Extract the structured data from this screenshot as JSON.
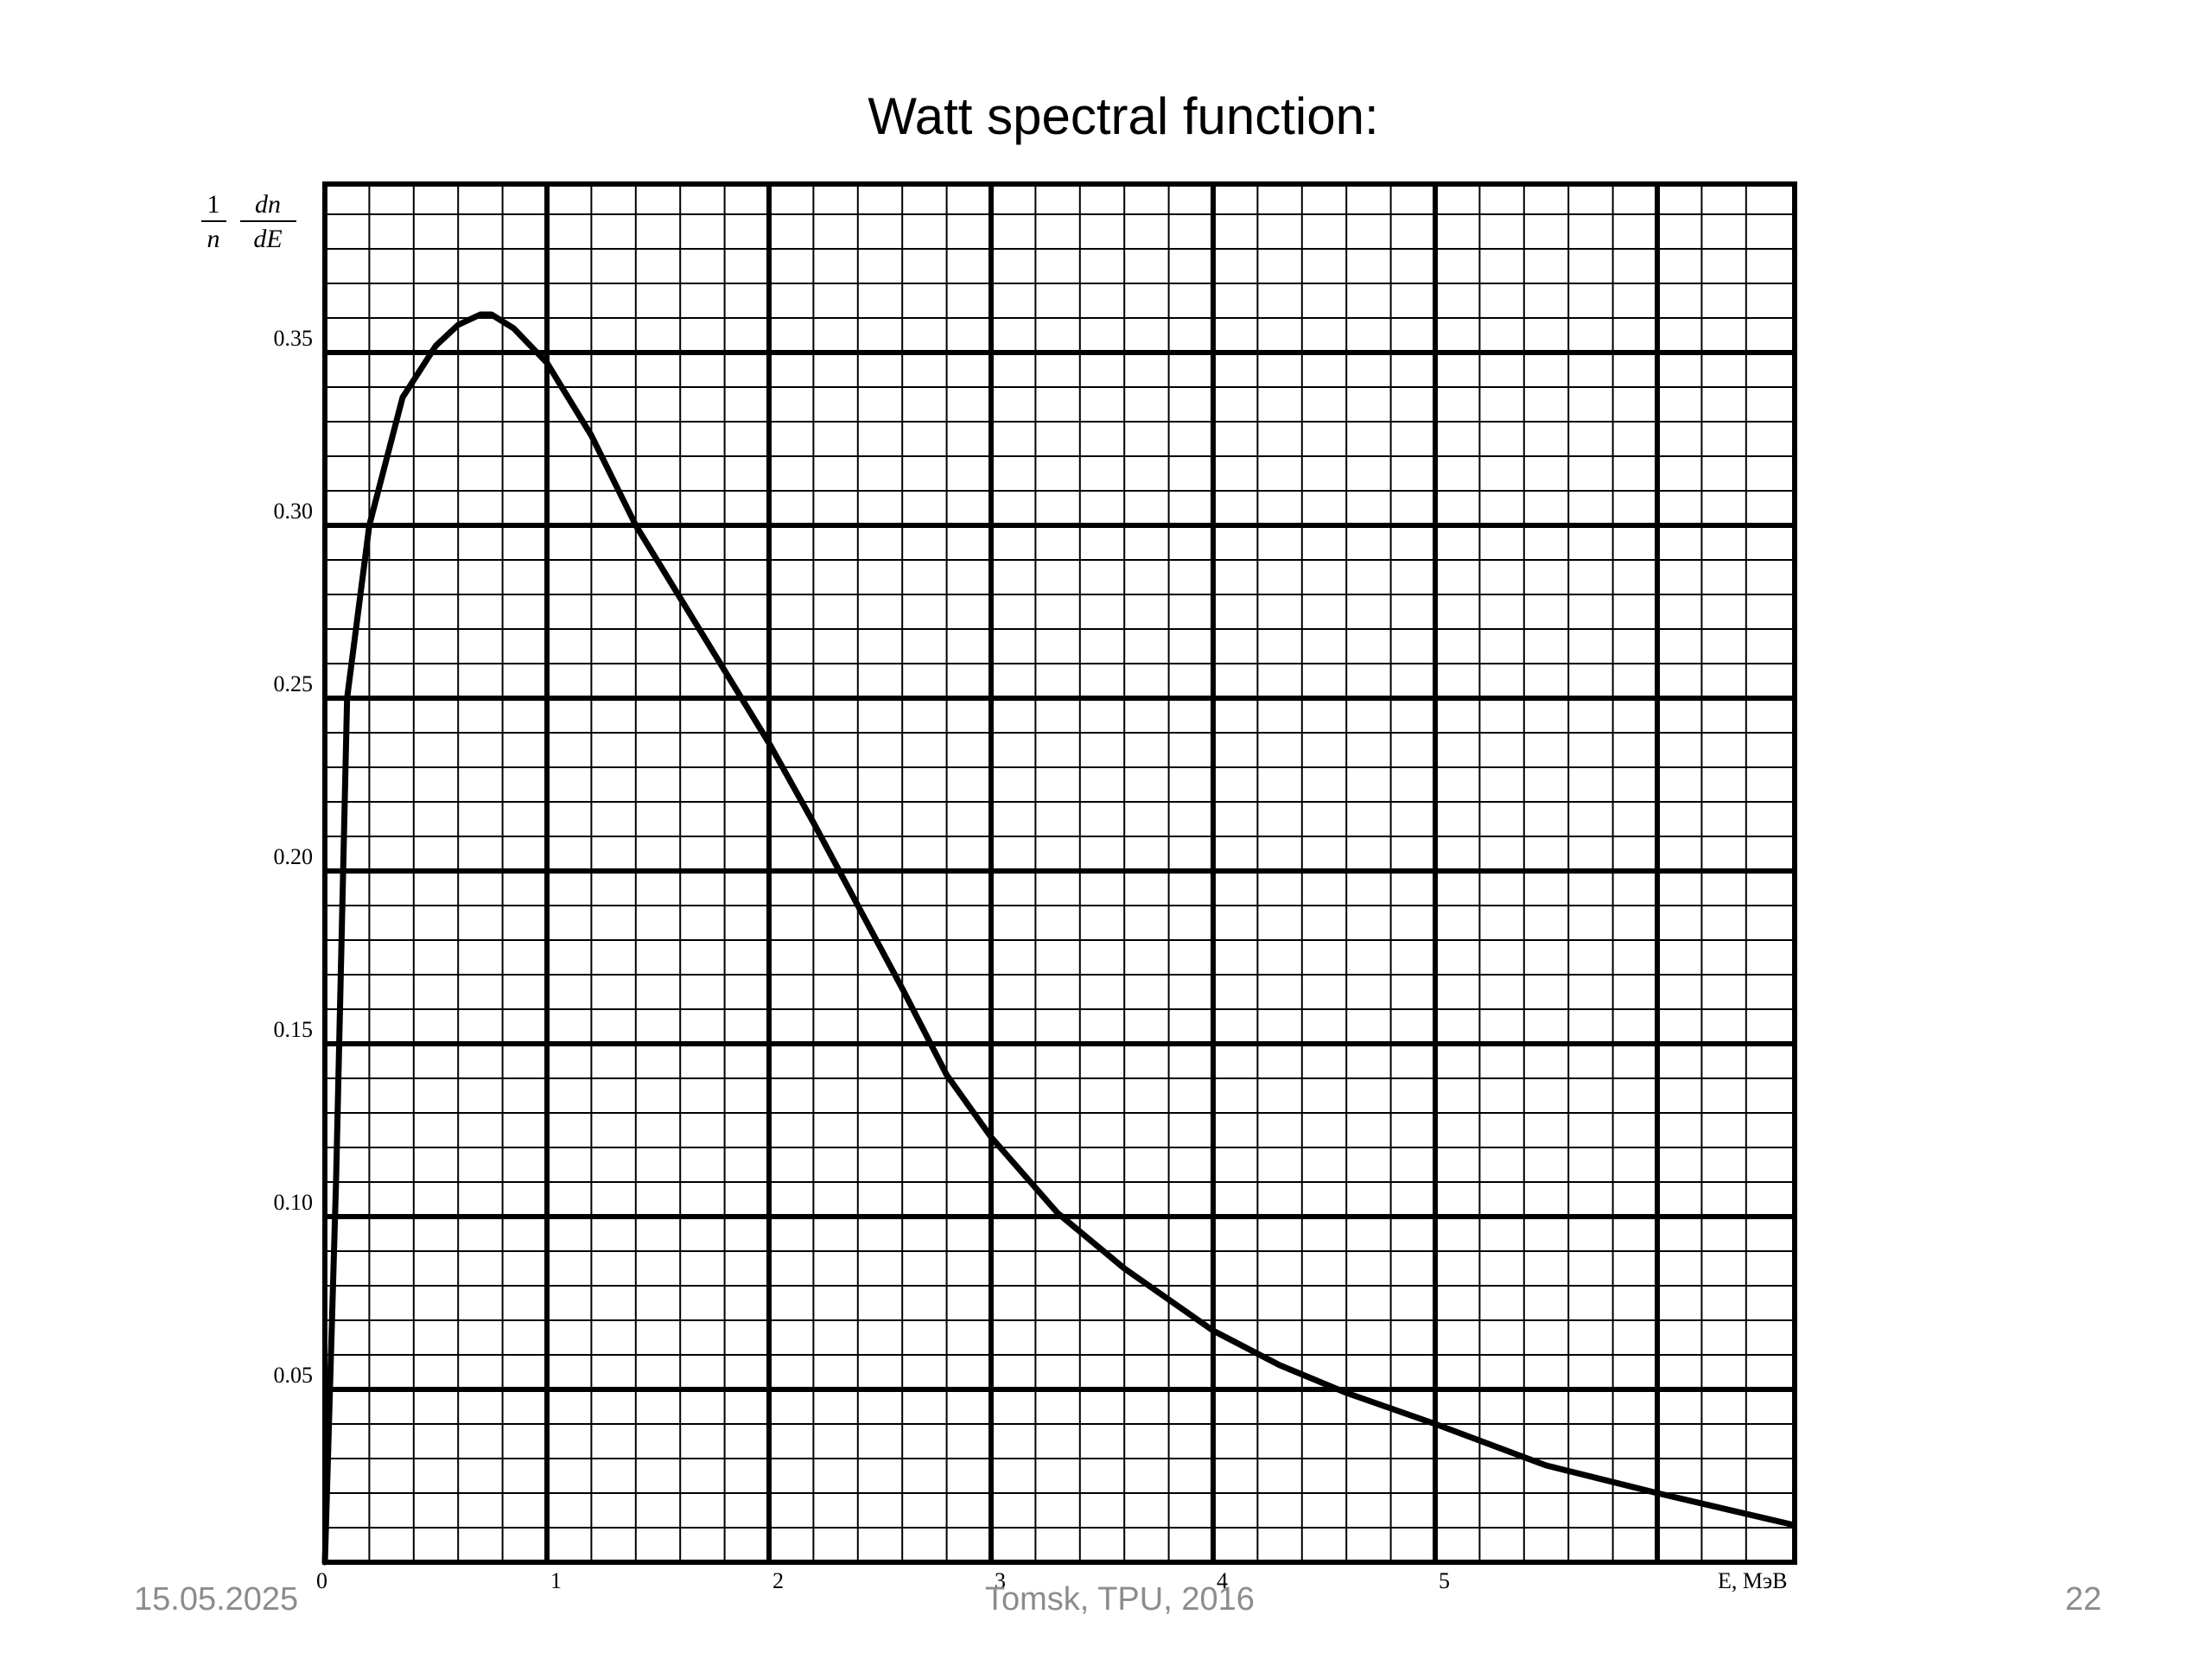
{
  "slide": {
    "title": "Watt spectral function:",
    "footer_date": "15.05.2025",
    "footer_center": "Tomsk, TPU, 2016",
    "page_number": "22"
  },
  "chart_data": {
    "type": "line",
    "title": "Watt spectral function:",
    "ylabel": {
      "top_numerator": "1",
      "top_denominator": "n",
      "frac_numerator": "dn",
      "frac_denominator": "dE"
    },
    "xlabel": "E, МэВ",
    "xlim": [
      0,
      6.6
    ],
    "ylim": [
      0,
      0.4
    ],
    "x_ticks": [
      "0",
      "1",
      "2",
      "3",
      "4",
      "5"
    ],
    "y_ticks": [
      "0.05",
      "0.10",
      "0.15",
      "0.20",
      "0.25",
      "0.30",
      "0.35"
    ],
    "grid": true,
    "series": [
      {
        "x": [
          0,
          0.05,
          0.1,
          0.2,
          0.35,
          0.5,
          0.6,
          0.7,
          0.75,
          0.85,
          1.0,
          1.2,
          1.4,
          1.6,
          1.8,
          2.0,
          2.2,
          2.4,
          2.6,
          2.8,
          3.0,
          3.3,
          3.6,
          4.0,
          4.3,
          4.6,
          5.0,
          5.5,
          6.0,
          6.6
        ],
        "y": [
          0.0,
          0.11,
          0.25,
          0.3,
          0.337,
          0.352,
          0.358,
          0.361,
          0.361,
          0.357,
          0.347,
          0.326,
          0.3,
          0.279,
          0.258,
          0.237,
          0.214,
          0.19,
          0.166,
          0.141,
          0.123,
          0.101,
          0.085,
          0.067,
          0.057,
          0.049,
          0.04,
          0.028,
          0.02,
          0.011
        ]
      }
    ]
  }
}
